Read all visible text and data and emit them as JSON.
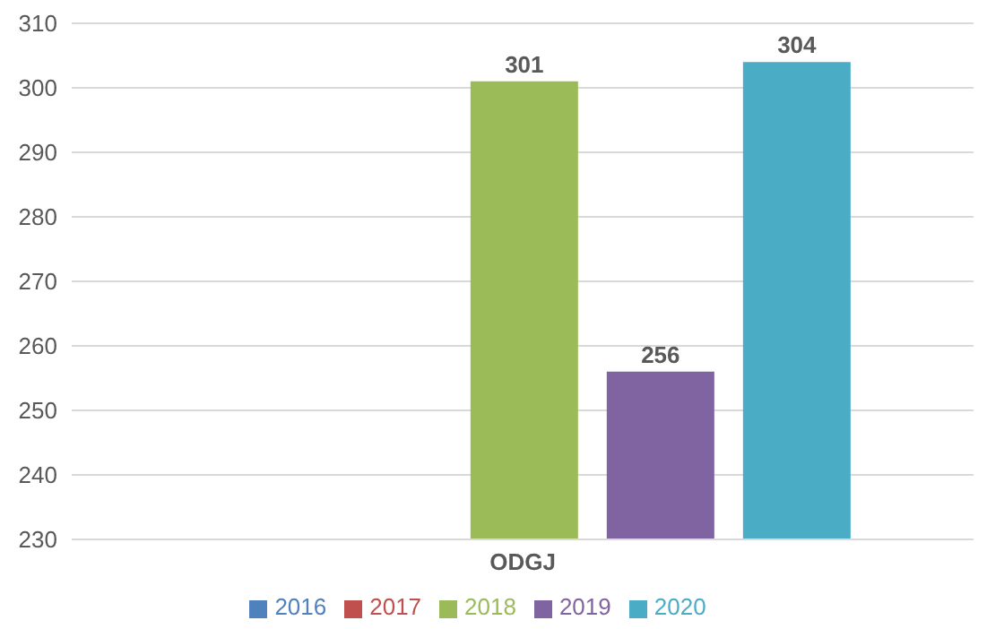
{
  "chart_data": {
    "type": "bar",
    "categories": [
      "ODGJ"
    ],
    "series": [
      {
        "name": "2016",
        "color": "#4f81bd",
        "values": [
          null
        ]
      },
      {
        "name": "2017",
        "color": "#c0504d",
        "values": [
          null
        ]
      },
      {
        "name": "2018",
        "color": "#9bbb59",
        "values": [
          301
        ]
      },
      {
        "name": "2019",
        "color": "#8064a2",
        "values": [
          256
        ]
      },
      {
        "name": "2020",
        "color": "#4bacc6",
        "values": [
          304
        ]
      }
    ],
    "ylim": [
      230,
      310
    ],
    "yticks": [
      230,
      240,
      250,
      260,
      270,
      280,
      290,
      300,
      310
    ],
    "grid": "y",
    "legend": "bottom",
    "data_labels": true
  }
}
